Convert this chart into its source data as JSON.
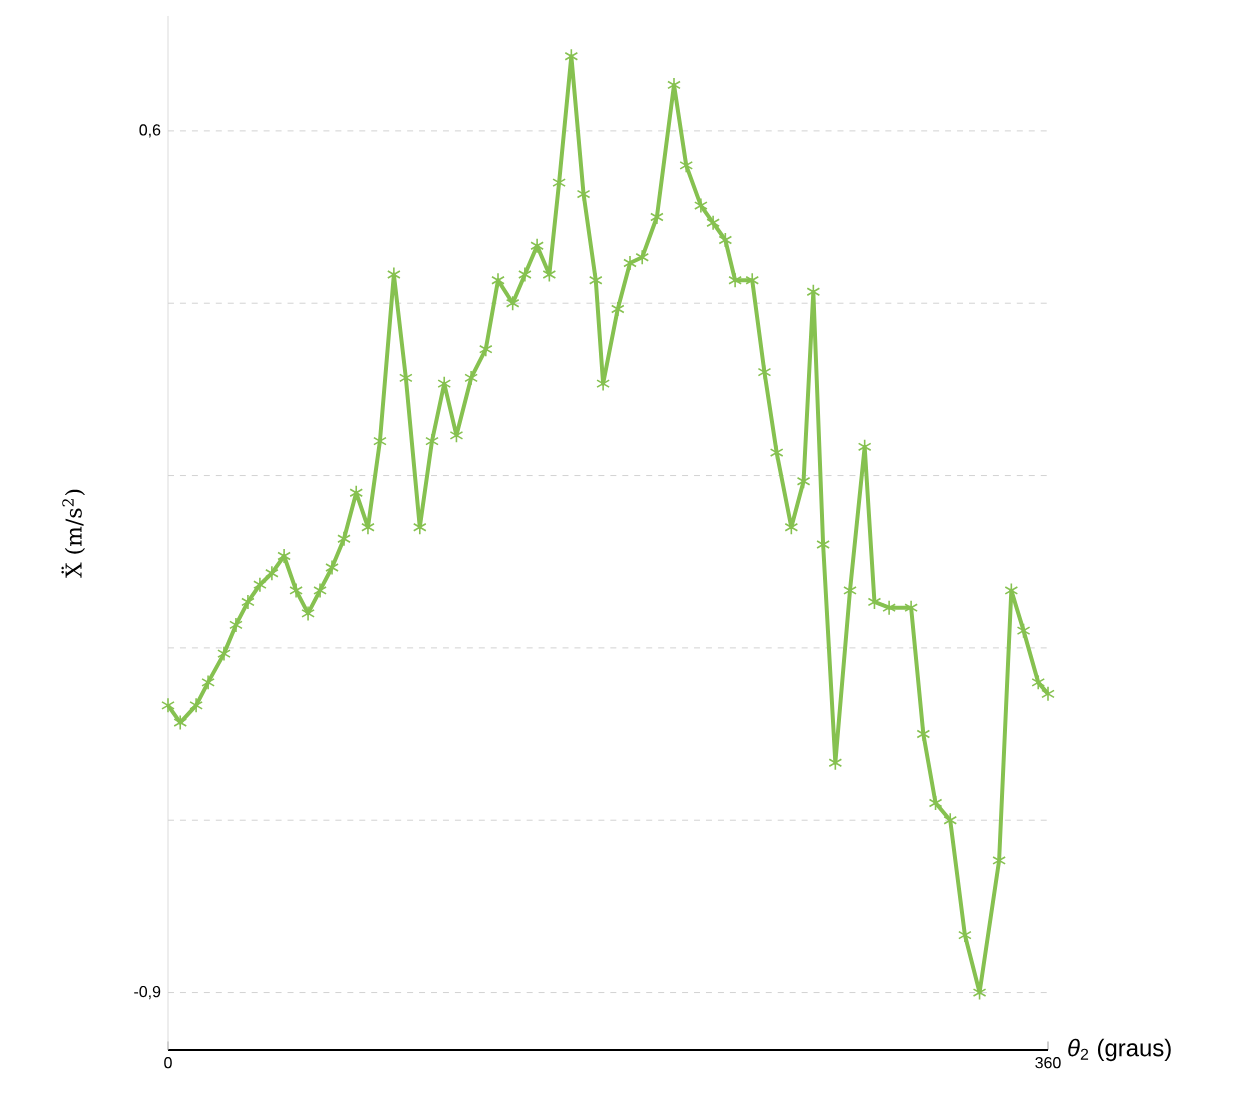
{
  "chart_data": {
    "type": "line",
    "xlabel": "*θ*$_{2}$ (graus)",
    "ylabel": "Ẍ (m/s$^{2}$)",
    "x": [
      0,
      5,
      11.5,
      16.4,
      22.9,
      27.8,
      32.7,
      37.6,
      42.5,
      47.5,
      52.4,
      57.3,
      62.2,
      67.1,
      72,
      77,
      81.8,
      86.7,
      92.4,
      97.3,
      103,
      108,
      113,
      118,
      124,
      130,
      135,
      141,
      146,
      151,
      156,
      160,
      165,
      170,
      175,
      178,
      184,
      189,
      194,
      200,
      207,
      212,
      218,
      223,
      228,
      232,
      239,
      244,
      249,
      255,
      260,
      264,
      268,
      273,
      279,
      285,
      289,
      295,
      304,
      309,
      314,
      320,
      326,
      332,
      340,
      345,
      350,
      356,
      360
    ],
    "series": [
      {
        "color": "#86c150",
        "values": [
          -0.4,
          -0.43,
          -0.4,
          -0.36,
          -0.31,
          -0.26,
          -0.22,
          -0.19,
          -0.17,
          -0.14,
          -0.2,
          -0.24,
          -0.2,
          -0.16,
          -0.11,
          -0.03,
          -0.09,
          0.06,
          0.35,
          0.17,
          -0.09,
          0.06,
          0.16,
          0.07,
          0.17,
          0.22,
          0.34,
          0.3,
          0.35,
          0.4,
          0.35,
          0.51,
          0.73,
          0.49,
          0.34,
          0.16,
          0.29,
          0.37,
          0.38,
          0.45,
          0.68,
          0.54,
          0.47,
          0.44,
          0.41,
          0.34,
          0.34,
          0.18,
          0.04,
          -0.09,
          -0.01,
          0.32,
          -0.12,
          -0.5,
          -0.2,
          0.05,
          -0.22,
          -0.23,
          -0.23,
          -0.45,
          -0.57,
          -0.6,
          -0.8,
          -0.9,
          -0.67,
          -0.2,
          -0.27,
          -0.36,
          -0.38
        ]
      }
    ],
    "xlim": [
      0,
      360
    ],
    "xticks": [
      0,
      360
    ],
    "ylim": [
      -1.0,
      0.8
    ],
    "yticks": [
      {
        "value": -0.9,
        "label": "-0,9"
      },
      {
        "value": -0.6,
        "label": null
      },
      {
        "value": -0.3,
        "label": null
      },
      {
        "value": 0,
        "label": null
      },
      {
        "value": 0.3,
        "label": null
      },
      {
        "value": 0.6,
        "label": "0,6"
      }
    ],
    "grid": "y",
    "marker": "cross",
    "line_style": "solid"
  }
}
